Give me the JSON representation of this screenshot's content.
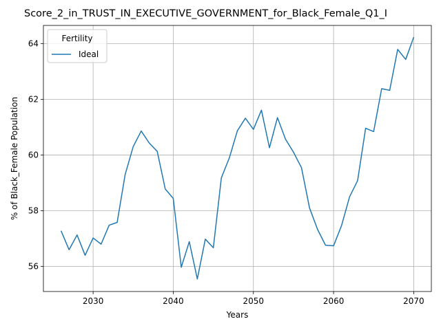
{
  "chart_data": {
    "type": "line",
    "title": "Score_2_in_TRUST_IN_EXECUTIVE_GOVERNMENT_for_Black_Female_Q1_I",
    "xlabel": "Years",
    "ylabel": "% of Black_Female Population",
    "xlim": [
      2023.8,
      2072.2
    ],
    "ylim": [
      55.1,
      64.65
    ],
    "xticks": [
      2030,
      2040,
      2050,
      2060,
      2070
    ],
    "yticks": [
      56,
      58,
      60,
      62,
      64
    ],
    "grid": true,
    "legend": {
      "title": "Fertility",
      "placement": "top-left"
    },
    "series": [
      {
        "name": "Ideal",
        "color": "#1f77b4",
        "x": [
          2026,
          2027,
          2028,
          2029,
          2030,
          2031,
          2032,
          2033,
          2034,
          2035,
          2036,
          2037,
          2038,
          2039,
          2040,
          2041,
          2042,
          2043,
          2044,
          2045,
          2046,
          2047,
          2048,
          2049,
          2050,
          2051,
          2052,
          2053,
          2054,
          2055,
          2056,
          2057,
          2058,
          2059,
          2060,
          2061,
          2062,
          2063,
          2064,
          2065,
          2066,
          2067,
          2068,
          2069,
          2070
        ],
        "values": [
          57.28,
          56.6,
          57.13,
          56.4,
          57.02,
          56.8,
          57.48,
          57.58,
          59.3,
          60.3,
          60.86,
          60.43,
          60.13,
          58.78,
          58.44,
          55.97,
          56.89,
          55.55,
          56.98,
          56.67,
          59.18,
          59.9,
          60.87,
          61.32,
          60.92,
          61.61,
          60.26,
          61.34,
          60.57,
          60.1,
          59.54,
          58.1,
          57.33,
          56.76,
          56.74,
          57.47,
          58.5,
          59.08,
          60.96,
          60.84,
          62.38,
          62.32,
          63.79,
          63.43,
          64.23
        ]
      }
    ]
  }
}
